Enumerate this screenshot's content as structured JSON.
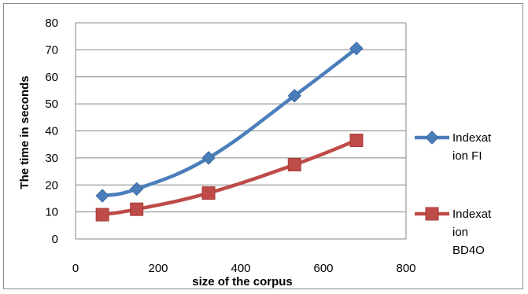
{
  "chart_data": {
    "type": "scatter",
    "title": "",
    "xlabel": "size of the corpus",
    "ylabel": "The time in seconds",
    "xlim": [
      0,
      800
    ],
    "ylim": [
      0,
      80
    ],
    "xticks": [
      "0",
      "200",
      "400",
      "600",
      "800"
    ],
    "yticks": [
      "0",
      "10",
      "20",
      "30",
      "40",
      "50",
      "60",
      "70",
      "80"
    ],
    "grid": true,
    "legend_position": "right",
    "series": [
      {
        "name": "Indexation FI",
        "legend_lines": [
          "Indexat",
          "ion FI"
        ],
        "color": "#4a7ebb",
        "marker": "diamond",
        "x": [
          65,
          148,
          322,
          530,
          680
        ],
        "y": [
          16,
          18.5,
          30,
          53,
          70.5
        ]
      },
      {
        "name": "Indexation BD4O",
        "legend_lines": [
          "Indexat",
          "ion",
          "BD4O"
        ],
        "color": "#be4b48",
        "marker": "square",
        "x": [
          65,
          148,
          322,
          530,
          680
        ],
        "y": [
          9,
          11,
          17,
          27.5,
          36.5
        ]
      }
    ]
  }
}
